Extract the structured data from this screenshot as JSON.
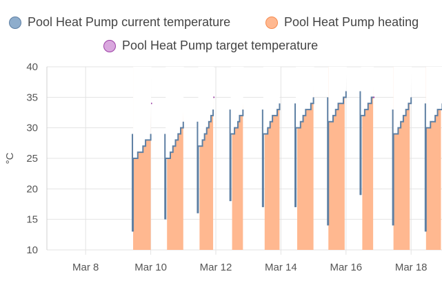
{
  "chart_data": {
    "type": "line",
    "title": "",
    "ylabel": "°C",
    "xlabel": "",
    "ylim": [
      10,
      40
    ],
    "xlim": [
      "2024-03-07",
      "2024-03-19"
    ],
    "yticks": [
      "10",
      "15",
      "20",
      "25",
      "30",
      "35",
      "40"
    ],
    "xticks": [
      {
        "date": "2024-03-08",
        "label": "Mar 8"
      },
      {
        "date": "2024-03-10",
        "label": "Mar 10"
      },
      {
        "date": "2024-03-12",
        "label": "Mar 12"
      },
      {
        "date": "2024-03-14",
        "label": "Mar 14"
      },
      {
        "date": "2024-03-16",
        "label": "Mar 16"
      },
      {
        "date": "2024-03-18",
        "label": "Mar 18"
      }
    ],
    "grid": true,
    "legend_position": "top",
    "series": [
      {
        "name": "Pool Heat Pump current temperature",
        "color": "#5d7fa3",
        "segments": [
          {
            "start": "2024-03-09 11:00",
            "end": "2024-03-10 00:00",
            "start_temp": 13,
            "peak": 29,
            "end_temp": 29
          },
          {
            "start": "2024-03-10 11:00",
            "end": "2024-03-11 00:00",
            "start_temp": 15,
            "peak": 29,
            "end_temp": 31
          },
          {
            "start": "2024-03-11 11:00",
            "end": "2024-03-11 22:00",
            "start_temp": 16,
            "peak": 31,
            "end_temp": 33
          },
          {
            "start": "2024-03-12 11:00",
            "end": "2024-03-12 20:00",
            "start_temp": 18,
            "peak": 33,
            "end_temp": 33
          },
          {
            "start": "2024-03-13 11:00",
            "end": "2024-03-13 23:00",
            "start_temp": 17,
            "peak": 33,
            "end_temp": 34
          },
          {
            "start": "2024-03-14 11:00",
            "end": "2024-03-15 00:00",
            "start_temp": 17,
            "peak": 34,
            "end_temp": 35
          },
          {
            "start": "2024-03-15 11:00",
            "end": "2024-03-16 00:00",
            "start_temp": 14,
            "peak": 35,
            "end_temp": 36
          },
          {
            "start": "2024-03-16 11:00",
            "end": "2024-03-16 20:00",
            "start_temp": 19,
            "peak": 36,
            "end_temp": 35
          },
          {
            "start": "2024-03-17 11:00",
            "end": "2024-03-18 00:00",
            "start_temp": 14,
            "peak": 33,
            "end_temp": 35
          },
          {
            "start": "2024-03-18 11:00",
            "end": "2024-03-18 23:00",
            "start_temp": 13,
            "peak": 34,
            "end_temp": 34
          }
        ]
      },
      {
        "name": "Pool Heat Pump heating",
        "color": "#f7a577",
        "fill": "#ffb890",
        "periods": [
          {
            "start": "2024-03-09 11:00",
            "end": "2024-03-10 00:00"
          },
          {
            "start": "2024-03-10 12:00",
            "end": "2024-03-11 00:00"
          },
          {
            "start": "2024-03-11 12:00",
            "end": "2024-03-11 22:00"
          },
          {
            "start": "2024-03-12 12:00",
            "end": "2024-03-12 20:00"
          },
          {
            "start": "2024-03-13 12:00",
            "end": "2024-03-13 23:00"
          },
          {
            "start": "2024-03-14 12:00",
            "end": "2024-03-15 00:00"
          },
          {
            "start": "2024-03-15 11:00",
            "end": "2024-03-15 23:00"
          },
          {
            "start": "2024-03-16 12:00",
            "end": "2024-03-16 20:00"
          },
          {
            "start": "2024-03-17 11:00",
            "end": "2024-03-17 23:00"
          },
          {
            "start": "2024-03-18 11:00",
            "end": "2024-03-18 22:00"
          }
        ]
      },
      {
        "name": "Pool Heat Pump target temperature",
        "color": "#9c3fa5",
        "segments": [
          {
            "start": "2024-03-09 12:00",
            "end": "2024-03-10 01:00",
            "value": 34
          },
          {
            "start": "2024-03-10 12:00",
            "end": "2024-03-11 00:00",
            "value": 34
          },
          {
            "start": "2024-03-11 12:00",
            "end": "2024-03-11 20:00",
            "value": 34
          },
          {
            "start": "2024-03-11 20:00",
            "end": "2024-03-11 23:00",
            "value": 35
          },
          {
            "start": "2024-03-12 13:00",
            "end": "2024-03-12 20:00",
            "value": 35
          },
          {
            "start": "2024-03-13 12:00",
            "end": "2024-03-13 23:00",
            "value": 35
          },
          {
            "start": "2024-03-14 12:00",
            "end": "2024-03-15 00:00",
            "value": 35
          },
          {
            "start": "2024-03-15 12:00",
            "end": "2024-03-16 00:00",
            "value": 36
          },
          {
            "start": "2024-03-16 13:00",
            "end": "2024-03-16 21:00",
            "value": 35
          },
          {
            "start": "2024-03-17 12:00",
            "end": "2024-03-18 00:00",
            "value": 35
          },
          {
            "start": "2024-03-18 12:00",
            "end": "2024-03-18 23:00",
            "value": 35
          }
        ]
      }
    ]
  }
}
